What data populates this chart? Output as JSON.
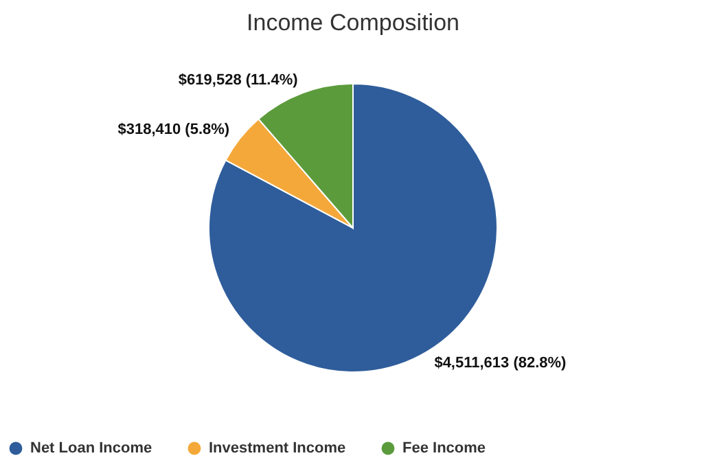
{
  "chart_data": {
    "type": "pie",
    "title": "Income Composition",
    "categories": [
      "Net Loan Income",
      "Investment Income",
      "Fee Income"
    ],
    "values": [
      4511613,
      318410,
      619528
    ],
    "colors": [
      "#2f5d9b",
      "#f5a83a",
      "#5c9b3c"
    ],
    "value_labels": [
      "$4,511,613 (82.8%)",
      "$318,410 (5.8%)",
      "$619,528 (11.4%)"
    ],
    "legend": "bottom"
  }
}
